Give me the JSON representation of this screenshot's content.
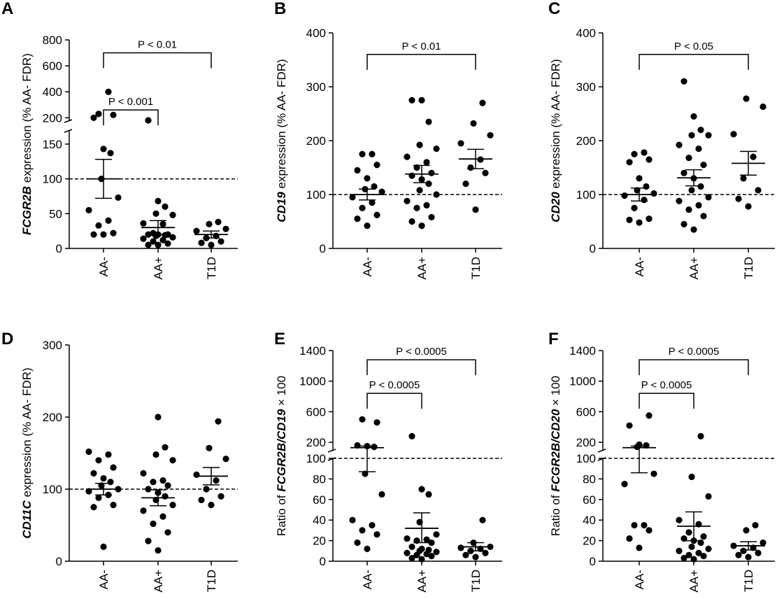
{
  "colors": {
    "ink": "#000000",
    "background": "#ffffff"
  },
  "chart_data": [
    {
      "letter": "A",
      "type": "scatter",
      "y_label": [
        {
          "text": "FCGR2B",
          "italic": true
        },
        {
          "text": " expression (% AA- FDR)",
          "italic": false
        }
      ],
      "categories": [
        "AA-",
        "AA+",
        "T1D"
      ],
      "axis_broken": true,
      "ylim": [
        0,
        800
      ],
      "y_segments": [
        {
          "min": 0,
          "max": 170,
          "ticks": [
            0,
            50,
            100,
            150
          ]
        },
        {
          "min": 180,
          "max": 800,
          "ticks": [
            200,
            400,
            600,
            800
          ]
        }
      ],
      "reference_line": 100,
      "points": [
        [
          20,
          20,
          22,
          33,
          40,
          55,
          73,
          100,
          137,
          143,
          200,
          222,
          230,
          400
        ],
        [
          5,
          5,
          7,
          10,
          12,
          14,
          16,
          18,
          19,
          20,
          20,
          20,
          22,
          35,
          36,
          48,
          50,
          60,
          68,
          180
        ],
        [
          5,
          8,
          10,
          15,
          18,
          25,
          28,
          35,
          38
        ]
      ],
      "summary": [
        {
          "mean": 100,
          "sem_low": 72,
          "sem_high": 128
        },
        {
          "mean": 30,
          "sem_low": 20,
          "sem_high": 40
        },
        {
          "mean": 20,
          "sem_low": 15,
          "sem_high": 25
        }
      ],
      "comparisons": [
        {
          "from": "AA-",
          "to": "AA+",
          "label": "P < 0.001",
          "y": 260
        },
        {
          "from": "AA-",
          "to": "T1D",
          "label": "P < 0.01",
          "y": 700
        }
      ]
    },
    {
      "letter": "B",
      "type": "scatter",
      "y_label": [
        {
          "text": "CD19",
          "italic": true
        },
        {
          "text": " expression (% AA- FDR)",
          "italic": false
        }
      ],
      "categories": [
        "AA-",
        "AA+",
        "T1D"
      ],
      "axis_broken": false,
      "ylim": [
        0,
        400
      ],
      "y_segments": [
        {
          "min": 0,
          "max": 400,
          "ticks": [
            0,
            100,
            200,
            300,
            400
          ]
        }
      ],
      "reference_line": 100,
      "points": [
        [
          42,
          55,
          62,
          75,
          85,
          95,
          105,
          110,
          115,
          130,
          145,
          155,
          175,
          175
        ],
        [
          42,
          50,
          58,
          75,
          80,
          88,
          100,
          108,
          120,
          128,
          135,
          140,
          150,
          160,
          170,
          185,
          192,
          235,
          275,
          275
        ],
        [
          72,
          120,
          140,
          150,
          165,
          195,
          210,
          232,
          270
        ]
      ],
      "summary": [
        {
          "mean": 100,
          "sem_low": 90,
          "sem_high": 110
        },
        {
          "mean": 138,
          "sem_low": 122,
          "sem_high": 154
        },
        {
          "mean": 166,
          "sem_low": 148,
          "sem_high": 184
        }
      ],
      "comparisons": [
        {
          "from": "AA-",
          "to": "T1D",
          "label": "P < 0.01",
          "y": 360
        }
      ]
    },
    {
      "letter": "C",
      "type": "scatter",
      "y_label": [
        {
          "text": "CD20",
          "italic": true
        },
        {
          "text": " expression (% AA- FDR)",
          "italic": false
        }
      ],
      "categories": [
        "AA-",
        "AA+",
        "T1D"
      ],
      "axis_broken": false,
      "ylim": [
        0,
        400
      ],
      "y_segments": [
        {
          "min": 0,
          "max": 400,
          "ticks": [
            0,
            100,
            200,
            300,
            400
          ]
        }
      ],
      "reference_line": 100,
      "points": [
        [
          48,
          53,
          55,
          75,
          90,
          98,
          102,
          108,
          115,
          130,
          160,
          165,
          175,
          178
        ],
        [
          35,
          45,
          60,
          72,
          80,
          88,
          95,
          108,
          115,
          130,
          140,
          155,
          168,
          185,
          192,
          210,
          210,
          220,
          245,
          310
        ],
        [
          78,
          92,
          108,
          130,
          170,
          212,
          263,
          278
        ]
      ],
      "summary": [
        {
          "mean": 100,
          "sem_low": 88,
          "sem_high": 112
        },
        {
          "mean": 131,
          "sem_low": 116,
          "sem_high": 146
        },
        {
          "mean": 158,
          "sem_low": 136,
          "sem_high": 180
        }
      ],
      "comparisons": [
        {
          "from": "AA-",
          "to": "T1D",
          "label": "P < 0.05",
          "y": 360
        }
      ]
    },
    {
      "letter": "D",
      "type": "scatter",
      "y_label": [
        {
          "text": "CD11C",
          "italic": true
        },
        {
          "text": " expression (% AA- FDR)",
          "italic": false
        }
      ],
      "categories": [
        "AA-",
        "AA+",
        "T1D"
      ],
      "axis_broken": false,
      "ylim": [
        0,
        300
      ],
      "y_segments": [
        {
          "min": 0,
          "max": 300,
          "ticks": [
            0,
            100,
            200,
            300
          ]
        }
      ],
      "reference_line": 100,
      "points": [
        [
          20,
          75,
          78,
          88,
          92,
          97,
          100,
          105,
          110,
          115,
          122,
          130,
          140,
          148,
          152
        ],
        [
          15,
          28,
          40,
          52,
          62,
          70,
          78,
          85,
          90,
          95,
          100,
          105,
          110,
          112,
          122,
          140,
          148,
          158,
          200
        ],
        [
          78,
          85,
          90,
          100,
          112,
          120,
          142,
          157,
          194
        ]
      ],
      "summary": [
        {
          "mean": 100,
          "sem_low": 92,
          "sem_high": 108
        },
        {
          "mean": 88,
          "sem_low": 77,
          "sem_high": 99
        },
        {
          "mean": 118,
          "sem_low": 106,
          "sem_high": 130
        }
      ],
      "comparisons": []
    },
    {
      "letter": "E",
      "type": "scatter",
      "y_label": [
        {
          "text": "Ratio of ",
          "italic": false
        },
        {
          "text": "FCGR2B/CD19",
          "italic": true
        },
        {
          "text": " × 100",
          "italic": false
        }
      ],
      "categories": [
        "AA-",
        "AA+",
        "T1D"
      ],
      "axis_broken": true,
      "ylim": [
        0,
        1400
      ],
      "y_segments": [
        {
          "min": 0,
          "max": 100,
          "ticks": [
            0,
            20,
            40,
            60,
            80,
            100
          ]
        },
        {
          "min": 100,
          "max": 1400,
          "ticks": [
            200,
            600,
            1000,
            1400
          ]
        }
      ],
      "reference_line": 100,
      "points": [
        [
          12,
          18,
          26,
          30,
          35,
          40,
          65,
          85,
          140,
          150,
          160,
          460,
          500
        ],
        [
          2,
          3,
          5,
          6,
          7,
          8,
          9,
          10,
          11,
          12,
          14,
          18,
          20,
          21,
          22,
          26,
          38,
          65,
          70,
          280
        ],
        [
          4,
          6,
          8,
          10,
          12,
          13,
          14,
          18,
          40
        ]
      ],
      "summary": [
        {
          "mean": 130,
          "sem_low": 87,
          "sem_high": 150
        },
        {
          "mean": 32,
          "sem_low": 18,
          "sem_high": 47
        },
        {
          "mean": 14,
          "sem_low": 10,
          "sem_high": 18
        }
      ],
      "comparisons": [
        {
          "from": "AA-",
          "to": "AA+",
          "label": "P < 0.0005",
          "y": 840
        },
        {
          "from": "AA-",
          "to": "T1D",
          "label": "P < 0.0005",
          "y": 1280
        }
      ]
    },
    {
      "letter": "F",
      "type": "scatter",
      "y_label": [
        {
          "text": "Ratio of ",
          "italic": false
        },
        {
          "text": "FCGR2B/CD20",
          "italic": true
        },
        {
          "text": " × 100",
          "italic": false
        }
      ],
      "categories": [
        "AA-",
        "AA+",
        "T1D"
      ],
      "axis_broken": true,
      "ylim": [
        0,
        1400
      ],
      "y_segments": [
        {
          "min": 0,
          "max": 100,
          "ticks": [
            0,
            20,
            40,
            60,
            80,
            100
          ]
        },
        {
          "min": 100,
          "max": 1400,
          "ticks": [
            200,
            600,
            1000,
            1400
          ]
        }
      ],
      "reference_line": 100,
      "points": [
        [
          13,
          22,
          30,
          35,
          35,
          75,
          85,
          140,
          160,
          170,
          420,
          550
        ],
        [
          2,
          3,
          5,
          6,
          8,
          10,
          12,
          14,
          18,
          20,
          22,
          24,
          28,
          36,
          40,
          63,
          82,
          280
        ],
        [
          4,
          6,
          8,
          10,
          13,
          15,
          18,
          30,
          35
        ]
      ],
      "summary": [
        {
          "mean": 130,
          "sem_low": 86,
          "sem_high": 150
        },
        {
          "mean": 34,
          "sem_low": 20,
          "sem_high": 48
        },
        {
          "mean": 15,
          "sem_low": 11,
          "sem_high": 19
        }
      ],
      "comparisons": [
        {
          "from": "AA-",
          "to": "AA+",
          "label": "P < 0.0005",
          "y": 840
        },
        {
          "from": "AA-",
          "to": "T1D",
          "label": "P < 0.0005",
          "y": 1280
        }
      ]
    }
  ]
}
